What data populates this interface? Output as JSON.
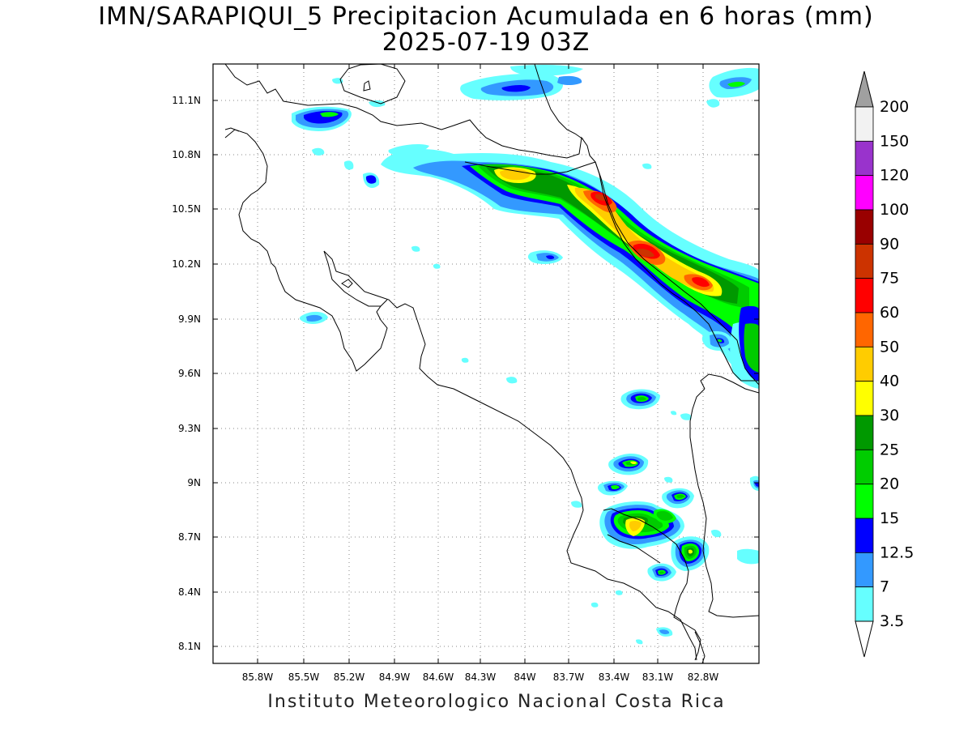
{
  "title": {
    "line1": "IMN/SARAPIQUI_5 Precipitacion Acumulada en 6 horas (mm)",
    "line2": "2025-07-19 03Z"
  },
  "footer": "Instituto Meteorologico Nacional Costa Rica",
  "map": {
    "lon_range": [
      -86.0,
      -82.6
    ],
    "lat_range": [
      8.0,
      11.3
    ],
    "lon_ticks": [
      "85.8W",
      "85.5W",
      "85.2W",
      "84.9W",
      "84.6W",
      "84.3W",
      "84W",
      "83.7W",
      "83.4W",
      "83.1W",
      "82.8W"
    ],
    "lat_ticks": [
      "11.1N",
      "10.8N",
      "10.5N",
      "10.2N",
      "9.9N",
      "9.6N",
      "9.3N",
      "9N",
      "8.7N",
      "8.4N",
      "8.1N"
    ],
    "grid": true
  },
  "legend": {
    "levels": [
      "200",
      "150",
      "120",
      "100",
      "90",
      "75",
      "60",
      "50",
      "40",
      "30",
      "25",
      "20",
      "15",
      "12.5",
      "7",
      "3.5"
    ],
    "colors": [
      "#f2f2f2",
      "#9933cc",
      "#ff00ff",
      "#990000",
      "#cc3300",
      "#ff0000",
      "#ff6600",
      "#ffcc00",
      "#ffff00",
      "#009900",
      "#00cc00",
      "#00ff00",
      "#0000ff",
      "#3399ff",
      "#66ffff"
    ],
    "top_arrow_color": "#a0a0a0",
    "bottom_arrow_color": "#ffffff"
  },
  "precip_palette": {
    "c3_5": "#66ffff",
    "c7": "#3399ff",
    "c12_5": "#0000ff",
    "c15": "#00ff00",
    "c20": "#00cc00",
    "c25": "#009900",
    "c30": "#ffff00",
    "c40": "#ffcc00",
    "c50": "#ff6600",
    "c60": "#ff0000",
    "c75": "#cc3300"
  }
}
